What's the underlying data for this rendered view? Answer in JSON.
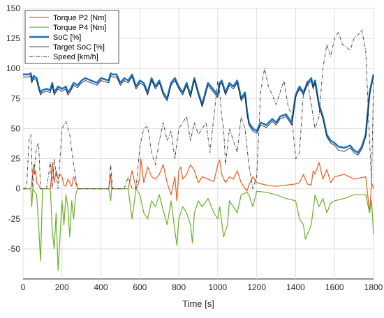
{
  "chart_data": {
    "type": "line",
    "title": "",
    "xlabel": "Time [s]",
    "ylabel": "",
    "xlim": [
      0,
      1800
    ],
    "ylim": [
      -75,
      150
    ],
    "xticks": [
      0,
      200,
      400,
      600,
      800,
      1000,
      1200,
      1400,
      1600,
      1800
    ],
    "yticks": [
      150,
      125,
      100,
      75,
      50,
      25,
      0,
      -25,
      -50
    ],
    "grid": true,
    "legend_position": "top-left",
    "series": [
      {
        "name": "Torque P2 [Nm]",
        "color": "#f05a1e",
        "x": [
          0,
          40,
          45,
          55,
          60,
          65,
          70,
          80,
          90,
          100,
          140,
          145,
          150,
          160,
          170,
          180,
          190,
          200,
          210,
          220,
          230,
          240,
          250,
          260,
          270,
          280,
          300,
          320,
          350,
          380,
          400,
          440,
          450,
          455,
          520,
          540,
          560,
          580,
          590,
          600,
          605,
          620,
          640,
          660,
          680,
          700,
          720,
          740,
          760,
          780,
          790,
          800,
          810,
          820,
          840,
          860,
          880,
          900,
          920,
          950,
          980,
          1000,
          1010,
          1020,
          1040,
          1060,
          1080,
          1100,
          1120,
          1150,
          1160,
          1180,
          1200,
          1250,
          1300,
          1350,
          1400,
          1420,
          1440,
          1460,
          1480,
          1490,
          1500,
          1520,
          1540,
          1560,
          1580,
          1600,
          1650,
          1700,
          1760,
          1780,
          1790,
          1800
        ],
        "y": [
          0,
          0,
          5,
          20,
          12,
          15,
          5,
          3,
          0,
          0,
          0,
          8,
          22,
          5,
          15,
          8,
          12,
          10,
          3,
          2,
          8,
          5,
          2,
          10,
          5,
          0,
          0,
          0,
          0,
          0,
          0,
          0,
          12,
          0,
          0,
          0,
          15,
          0,
          3,
          10,
          25,
          5,
          18,
          10,
          8,
          12,
          20,
          5,
          -5,
          10,
          -10,
          15,
          18,
          8,
          12,
          20,
          15,
          5,
          10,
          8,
          6,
          20,
          24,
          12,
          5,
          10,
          8,
          15,
          5,
          -2,
          3,
          10,
          5,
          3,
          2,
          3,
          4,
          5,
          12,
          4,
          3,
          15,
          12,
          22,
          8,
          16,
          5,
          10,
          12,
          8,
          10,
          -20,
          5,
          0
        ]
      },
      {
        "name": "Torque P4 [Nm]",
        "color": "#6aaf28",
        "x": [
          0,
          40,
          45,
          50,
          70,
          80,
          90,
          100,
          140,
          145,
          150,
          160,
          170,
          180,
          190,
          200,
          210,
          220,
          230,
          240,
          250,
          260,
          270,
          280,
          300,
          320,
          350,
          380,
          400,
          440,
          450,
          455,
          520,
          540,
          560,
          580,
          600,
          620,
          640,
          660,
          680,
          700,
          720,
          740,
          760,
          780,
          790,
          800,
          820,
          840,
          860,
          870,
          880,
          900,
          920,
          950,
          980,
          1000,
          1010,
          1030,
          1050,
          1060,
          1080,
          1100,
          1120,
          1150,
          1160,
          1180,
          1200,
          1250,
          1300,
          1350,
          1400,
          1420,
          1440,
          1450,
          1480,
          1500,
          1520,
          1540,
          1560,
          1580,
          1600,
          1650,
          1700,
          1760,
          1780,
          1790,
          1800
        ],
        "y": [
          0,
          0,
          -15,
          0,
          -5,
          -30,
          -60,
          0,
          0,
          -15,
          -35,
          -50,
          -20,
          -68,
          -40,
          -10,
          -30,
          -5,
          -15,
          -40,
          -10,
          -25,
          -5,
          0,
          0,
          0,
          0,
          0,
          0,
          0,
          -10,
          0,
          0,
          0,
          -25,
          0,
          -5,
          -20,
          -25,
          -10,
          -15,
          -5,
          -18,
          -30,
          -10,
          -35,
          -47,
          -25,
          -15,
          -20,
          -30,
          -45,
          -20,
          -10,
          -15,
          -8,
          -20,
          -25,
          -15,
          -40,
          -30,
          -10,
          -15,
          -20,
          -5,
          -3,
          -5,
          -15,
          -2,
          -3,
          -5,
          -8,
          -10,
          -25,
          -30,
          -42,
          -30,
          -5,
          -15,
          -8,
          -20,
          -12,
          -10,
          -8,
          -5,
          -5,
          -20,
          -10,
          -38
        ]
      },
      {
        "name": "SoC [%]",
        "color": "#1a6fbd",
        "x": [
          0,
          30,
          40,
          45,
          50,
          55,
          60,
          70,
          80,
          90,
          100,
          120,
          140,
          150,
          160,
          180,
          200,
          220,
          230,
          240,
          260,
          280,
          300,
          320,
          350,
          380,
          400,
          440,
          450,
          460,
          480,
          500,
          520,
          540,
          560,
          580,
          600,
          620,
          640,
          660,
          680,
          700,
          720,
          740,
          760,
          780,
          800,
          820,
          840,
          860,
          880,
          900,
          920,
          950,
          980,
          1000,
          1010,
          1020,
          1040,
          1060,
          1080,
          1100,
          1120,
          1140,
          1150,
          1160,
          1180,
          1200,
          1220,
          1250,
          1280,
          1300,
          1320,
          1350,
          1380,
          1400,
          1420,
          1440,
          1460,
          1480,
          1490,
          1500,
          1520,
          1540,
          1560,
          1580,
          1600,
          1620,
          1650,
          1680,
          1700,
          1720,
          1740,
          1760,
          1780,
          1790,
          1800
        ],
        "y": [
          95,
          95,
          96,
          90,
          92,
          94,
          93,
          92,
          85,
          80,
          82,
          83,
          82,
          88,
          80,
          85,
          83,
          85,
          80,
          82,
          88,
          86,
          90,
          92,
          90,
          88,
          92,
          90,
          96,
          95,
          95,
          88,
          92,
          90,
          95,
          85,
          90,
          88,
          80,
          92,
          85,
          90,
          80,
          75,
          88,
          92,
          85,
          80,
          88,
          78,
          92,
          80,
          70,
          88,
          82,
          78,
          88,
          90,
          80,
          88,
          85,
          90,
          75,
          80,
          65,
          55,
          50,
          48,
          55,
          53,
          58,
          55,
          60,
          62,
          55,
          78,
          85,
          80,
          88,
          92,
          85,
          90,
          70,
          60,
          45,
          40,
          38,
          35,
          34,
          36,
          32,
          30,
          35,
          45,
          80,
          88,
          95
        ]
      },
      {
        "name": "Target SoC [%]",
        "color": "#111111",
        "x": [
          0,
          30,
          40,
          45,
          50,
          55,
          60,
          70,
          80,
          90,
          100,
          120,
          140,
          150,
          160,
          180,
          200,
          220,
          230,
          240,
          260,
          280,
          300,
          320,
          350,
          380,
          400,
          440,
          450,
          460,
          480,
          500,
          520,
          540,
          560,
          580,
          600,
          620,
          640,
          660,
          680,
          700,
          720,
          740,
          760,
          780,
          800,
          820,
          840,
          860,
          880,
          900,
          920,
          950,
          980,
          1000,
          1010,
          1020,
          1040,
          1060,
          1080,
          1100,
          1120,
          1140,
          1150,
          1160,
          1180,
          1200,
          1220,
          1250,
          1280,
          1300,
          1320,
          1350,
          1380,
          1400,
          1420,
          1440,
          1460,
          1480,
          1490,
          1500,
          1520,
          1540,
          1560,
          1580,
          1600,
          1620,
          1650,
          1680,
          1700,
          1720,
          1740,
          1760,
          1780,
          1790,
          1800
        ],
        "y": [
          93,
          93,
          94,
          88,
          90,
          92,
          91,
          90,
          83,
          78,
          80,
          81,
          80,
          86,
          78,
          83,
          81,
          83,
          78,
          80,
          86,
          84,
          88,
          90,
          88,
          86,
          90,
          88,
          94,
          93,
          93,
          86,
          90,
          88,
          93,
          83,
          88,
          86,
          78,
          90,
          83,
          88,
          78,
          73,
          86,
          90,
          83,
          78,
          86,
          76,
          90,
          78,
          68,
          86,
          80,
          76,
          86,
          88,
          78,
          86,
          83,
          88,
          73,
          78,
          63,
          53,
          48,
          46,
          53,
          51,
          56,
          53,
          58,
          60,
          53,
          76,
          83,
          78,
          86,
          90,
          83,
          88,
          68,
          58,
          43,
          38,
          36,
          32,
          31,
          34,
          30,
          28,
          33,
          43,
          78,
          86,
          93
        ]
      },
      {
        "name": "Speed [km/h]",
        "color": "#333333",
        "x": [
          0,
          10,
          20,
          30,
          40,
          50,
          60,
          70,
          80,
          90,
          100,
          110,
          120,
          130,
          140,
          150,
          160,
          180,
          200,
          220,
          240,
          260,
          280,
          300,
          320,
          350,
          380,
          400,
          420,
          440,
          450,
          460,
          480,
          500,
          520,
          540,
          560,
          580,
          600,
          620,
          640,
          660,
          680,
          700,
          720,
          740,
          760,
          780,
          800,
          820,
          840,
          860,
          880,
          900,
          920,
          940,
          960,
          980,
          1000,
          1010,
          1020,
          1030,
          1040,
          1060,
          1080,
          1100,
          1120,
          1140,
          1160,
          1180,
          1200,
          1220,
          1240,
          1260,
          1280,
          1300,
          1320,
          1340,
          1360,
          1380,
          1400,
          1420,
          1440,
          1460,
          1480,
          1500,
          1520,
          1540,
          1560,
          1580,
          1600,
          1620,
          1640,
          1660,
          1680,
          1700,
          1720,
          1740,
          1760,
          1780,
          1790,
          1800
        ],
        "y": [
          0,
          0,
          5,
          40,
          45,
          0,
          20,
          35,
          38,
          0,
          0,
          0,
          0,
          10,
          22,
          0,
          25,
          0,
          50,
          56,
          45,
          20,
          0,
          0,
          0,
          0,
          0,
          0,
          0,
          0,
          20,
          0,
          0,
          0,
          0,
          10,
          0,
          0,
          35,
          50,
          52,
          30,
          20,
          40,
          55,
          40,
          48,
          25,
          50,
          55,
          60,
          40,
          55,
          45,
          50,
          55,
          30,
          60,
          90,
          80,
          60,
          50,
          20,
          50,
          40,
          30,
          60,
          50,
          20,
          0,
          10,
          80,
          100,
          85,
          78,
          70,
          80,
          90,
          70,
          60,
          25,
          30,
          80,
          90,
          70,
          50,
          60,
          100,
          120,
          110,
          125,
          130,
          120,
          118,
          115,
          125,
          128,
          132,
          115,
          40,
          5,
          90
        ]
      }
    ]
  }
}
